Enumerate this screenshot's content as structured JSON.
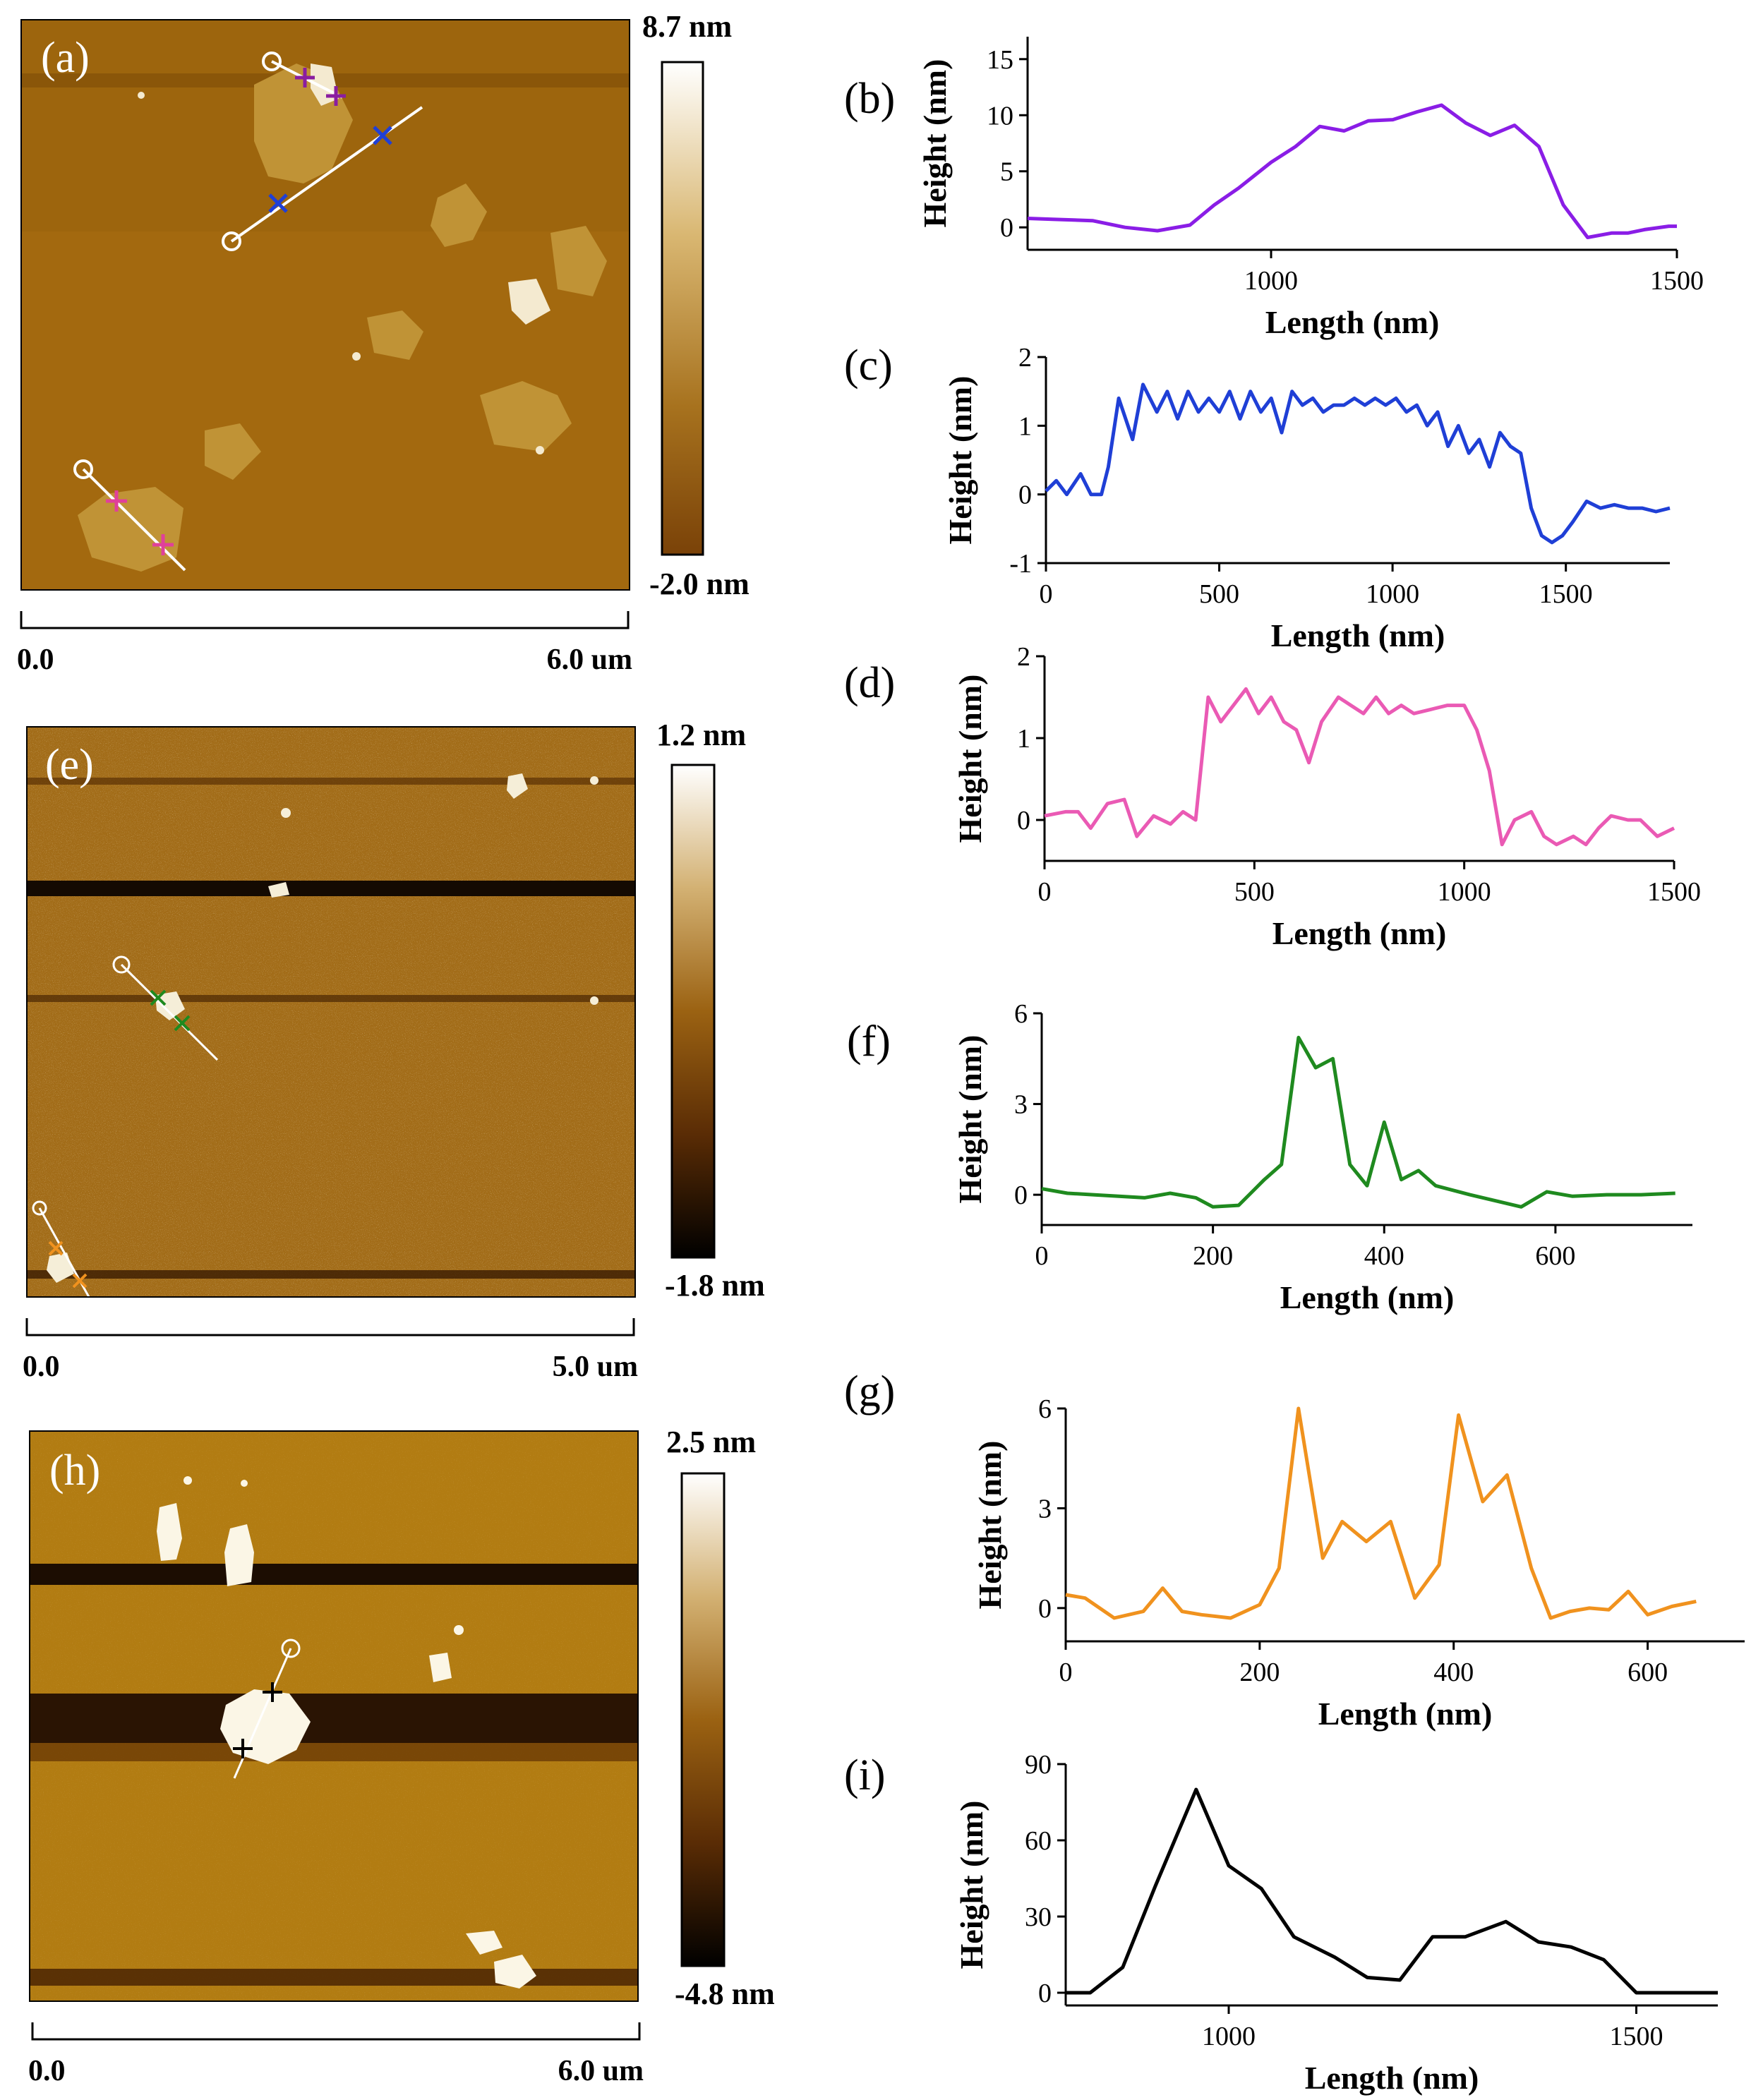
{
  "colors": {
    "afm_top": "#a06a0e",
    "afm_mid": "#b4881f",
    "afm_dark": "#6a3f06",
    "stripe": "#1a0d02",
    "b": "#8a1de6",
    "c": "#1f3fd6",
    "d": "#ea5ab4",
    "f": "#1f8a1f",
    "g": "#f0921e",
    "i": "#000000"
  },
  "afm_images": [
    {
      "panel": "(a)",
      "colorbar_max": "8.7 nm",
      "colorbar_min": "-2.0 nm",
      "scale_start": "0.0",
      "scale_end": "6.0 um"
    },
    {
      "panel": "(e)",
      "colorbar_max": "1.2 nm",
      "colorbar_min": "-1.8 nm",
      "scale_start": "0.0",
      "scale_end": "5.0 um"
    },
    {
      "panel": "(h)",
      "colorbar_max": "2.5 nm",
      "colorbar_min": "-4.8 nm",
      "scale_start": "0.0",
      "scale_end": "6.0 um"
    }
  ],
  "chart_data": [
    {
      "panel": "(b)",
      "type": "line",
      "color_key": "b",
      "xlabel": "Length (nm)",
      "ylabel": "Height (nm)",
      "xlim": [
        700,
        1500
      ],
      "ylim": [
        -2,
        17
      ],
      "xticks": [
        1000,
        1500
      ],
      "yticks": [
        0,
        5,
        10,
        15
      ],
      "x": [
        700,
        740,
        780,
        820,
        860,
        900,
        930,
        960,
        1000,
        1030,
        1060,
        1090,
        1120,
        1150,
        1180,
        1210,
        1240,
        1270,
        1300,
        1330,
        1360,
        1390,
        1420,
        1440,
        1460,
        1490,
        1500
      ],
      "y": [
        0.8,
        0.7,
        0.6,
        0.0,
        -0.3,
        0.2,
        2.0,
        3.5,
        5.8,
        7.2,
        9.0,
        8.6,
        9.5,
        9.6,
        10.3,
        10.9,
        9.3,
        8.2,
        9.1,
        7.2,
        2.0,
        -0.9,
        -0.5,
        -0.5,
        -0.2,
        0.1,
        0.1
      ]
    },
    {
      "panel": "(c)",
      "type": "line",
      "color_key": "c",
      "xlabel": "Length (nm)",
      "ylabel": "Height (nm)",
      "xlim": [
        0,
        1800
      ],
      "ylim": [
        -1,
        2
      ],
      "xticks": [
        0,
        500,
        1000,
        1500
      ],
      "yticks": [
        -1,
        0,
        1,
        2
      ],
      "x": [
        0,
        30,
        60,
        100,
        130,
        160,
        180,
        210,
        250,
        280,
        320,
        350,
        380,
        410,
        440,
        470,
        500,
        530,
        560,
        590,
        620,
        650,
        680,
        710,
        740,
        770,
        800,
        830,
        860,
        890,
        920,
        950,
        980,
        1010,
        1040,
        1070,
        1100,
        1130,
        1160,
        1190,
        1220,
        1250,
        1280,
        1310,
        1340,
        1370,
        1400,
        1430,
        1460,
        1490,
        1520,
        1560,
        1600,
        1640,
        1680,
        1720,
        1760,
        1800
      ],
      "y": [
        0.05,
        0.2,
        0.0,
        0.3,
        0.0,
        0.0,
        0.4,
        1.4,
        0.8,
        1.6,
        1.2,
        1.5,
        1.1,
        1.5,
        1.2,
        1.4,
        1.2,
        1.5,
        1.1,
        1.5,
        1.2,
        1.4,
        0.9,
        1.5,
        1.3,
        1.4,
        1.2,
        1.3,
        1.3,
        1.4,
        1.3,
        1.4,
        1.3,
        1.4,
        1.2,
        1.3,
        1.0,
        1.2,
        0.7,
        1.0,
        0.6,
        0.8,
        0.4,
        0.9,
        0.7,
        0.6,
        -0.2,
        -0.6,
        -0.7,
        -0.6,
        -0.4,
        -0.1,
        -0.2,
        -0.15,
        -0.2,
        -0.2,
        -0.25,
        -0.2
      ]
    },
    {
      "panel": "(d)",
      "type": "line",
      "color_key": "d",
      "xlabel": "Length (nm)",
      "ylabel": "Height (nm)",
      "xlim": [
        0,
        1500
      ],
      "ylim": [
        -0.5,
        2
      ],
      "xticks": [
        0,
        500,
        1000,
        1500
      ],
      "yticks": [
        0,
        1,
        2
      ],
      "x": [
        0,
        50,
        80,
        110,
        150,
        190,
        220,
        260,
        300,
        330,
        360,
        390,
        420,
        450,
        480,
        510,
        540,
        570,
        600,
        630,
        660,
        700,
        730,
        760,
        790,
        820,
        850,
        880,
        920,
        960,
        1000,
        1030,
        1060,
        1090,
        1120,
        1160,
        1190,
        1220,
        1260,
        1290,
        1320,
        1350,
        1390,
        1420,
        1460,
        1500
      ],
      "y": [
        0.05,
        0.1,
        0.1,
        -0.1,
        0.2,
        0.25,
        -0.2,
        0.05,
        -0.05,
        0.1,
        0.0,
        1.5,
        1.2,
        1.4,
        1.6,
        1.3,
        1.5,
        1.2,
        1.1,
        0.7,
        1.2,
        1.5,
        1.4,
        1.3,
        1.5,
        1.3,
        1.4,
        1.3,
        1.35,
        1.4,
        1.4,
        1.1,
        0.6,
        -0.3,
        0.0,
        0.1,
        -0.2,
        -0.3,
        -0.2,
        -0.3,
        -0.1,
        0.05,
        0.0,
        0.0,
        -0.2,
        -0.1
      ]
    },
    {
      "panel": "(f)",
      "type": "line",
      "color_key": "f",
      "xlabel": "Length (nm)",
      "ylabel": "Height (nm)",
      "xlim": [
        0,
        760
      ],
      "ylim": [
        -1,
        6
      ],
      "xticks": [
        0,
        200,
        400,
        600
      ],
      "yticks": [
        0,
        3,
        6
      ],
      "x": [
        0,
        30,
        60,
        90,
        120,
        150,
        180,
        200,
        230,
        260,
        280,
        300,
        320,
        340,
        360,
        380,
        400,
        420,
        440,
        460,
        500,
        530,
        560,
        590,
        620,
        660,
        700,
        740
      ],
      "y": [
        0.2,
        0.05,
        0.0,
        -0.05,
        -0.1,
        0.05,
        -0.1,
        -0.4,
        -0.35,
        0.5,
        1.0,
        5.2,
        4.2,
        4.5,
        1.0,
        0.3,
        2.4,
        0.5,
        0.8,
        0.3,
        0.0,
        -0.2,
        -0.4,
        0.1,
        -0.05,
        0.0,
        0.0,
        0.05
      ]
    },
    {
      "panel": "(g)",
      "type": "line",
      "color_key": "g",
      "xlabel": "Length (nm)",
      "ylabel": "Height (nm)",
      "xlim": [
        0,
        700
      ],
      "ylim": [
        -1,
        6
      ],
      "xticks": [
        0,
        200,
        400,
        600
      ],
      "yticks": [
        0,
        3,
        6
      ],
      "x": [
        0,
        20,
        50,
        80,
        100,
        120,
        140,
        170,
        200,
        220,
        240,
        265,
        285,
        310,
        335,
        360,
        385,
        405,
        430,
        455,
        480,
        500,
        520,
        540,
        560,
        580,
        600,
        625,
        650
      ],
      "y": [
        0.4,
        0.3,
        -0.3,
        -0.1,
        0.6,
        -0.1,
        -0.2,
        -0.3,
        0.1,
        1.2,
        6.0,
        1.5,
        2.6,
        2.0,
        2.6,
        0.3,
        1.3,
        5.8,
        3.2,
        4.0,
        1.2,
        -0.3,
        -0.1,
        0.0,
        -0.05,
        0.5,
        -0.2,
        0.05,
        0.2
      ]
    },
    {
      "panel": "(i)",
      "type": "line",
      "color_key": "i",
      "xlabel": "Length (nm)",
      "ylabel": "Height (nm)",
      "xlim": [
        800,
        1600
      ],
      "ylim": [
        -5,
        90
      ],
      "xticks": [
        1000,
        1500
      ],
      "yticks": [
        0,
        30,
        60,
        90
      ],
      "x": [
        800,
        830,
        870,
        910,
        960,
        1000,
        1040,
        1080,
        1130,
        1170,
        1210,
        1250,
        1290,
        1340,
        1380,
        1420,
        1460,
        1500,
        1540,
        1580,
        1600
      ],
      "y": [
        0,
        0,
        10,
        42,
        80,
        50,
        41,
        22,
        14,
        6,
        5,
        22,
        22,
        28,
        20,
        18,
        13,
        0,
        0,
        0,
        0
      ]
    }
  ]
}
